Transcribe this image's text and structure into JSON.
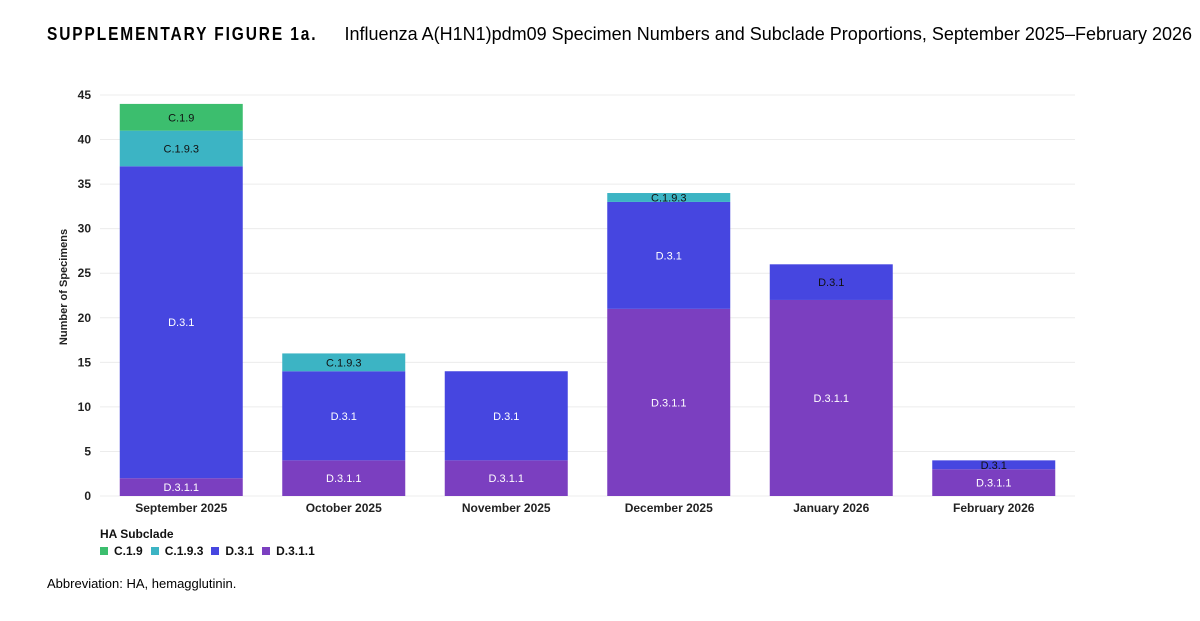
{
  "figure": {
    "label": "SUPPLEMENTARY FIGURE 1a.",
    "title": "Influenza A(H1N1)pdm09 Specimen Numbers and Subclade Proportions, September 2025–February 2026"
  },
  "footnote": "Abbreviation: HA, hemagglutinin.",
  "chart_data": {
    "type": "bar",
    "stacked": true,
    "title": "",
    "xlabel": "",
    "ylabel": "Number of Specimens",
    "ylim": [
      0,
      45
    ],
    "yticks": [
      0,
      5,
      10,
      15,
      20,
      25,
      30,
      35,
      40,
      45
    ],
    "grid": true,
    "categories": [
      "September 2025",
      "October 2025",
      "November 2025",
      "December 2025",
      "January 2026",
      "February 2026"
    ],
    "legend": {
      "title": "HA Subclade",
      "placement": "bottom-left"
    },
    "series": [
      {
        "name": "D.3.1.1",
        "color": "#7b3fc0",
        "values": [
          2,
          4,
          4,
          21,
          22,
          3
        ]
      },
      {
        "name": "D.3.1",
        "color": "#4646e0",
        "values": [
          35,
          10,
          10,
          12,
          4,
          1
        ]
      },
      {
        "name": "C.1.9.3",
        "color": "#3cb4c4",
        "values": [
          4,
          2,
          0,
          1,
          0,
          0
        ]
      },
      {
        "name": "C.1.9",
        "color": "#3cbe6e",
        "values": [
          3,
          0,
          0,
          0,
          0,
          0
        ]
      }
    ],
    "legend_order": [
      "C.1.9",
      "C.1.9.3",
      "D.3.1",
      "D.3.1.1"
    ]
  }
}
